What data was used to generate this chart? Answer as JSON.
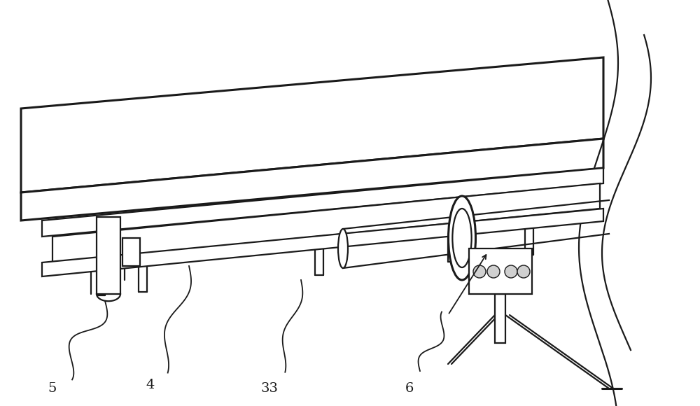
{
  "bg_color": "#ffffff",
  "lc": "#1a1a1a",
  "lw": 1.6,
  "lw_thin": 1.0,
  "lw_thick": 2.2,
  "label_fs": 14,
  "label_color": "#1a1a1a"
}
